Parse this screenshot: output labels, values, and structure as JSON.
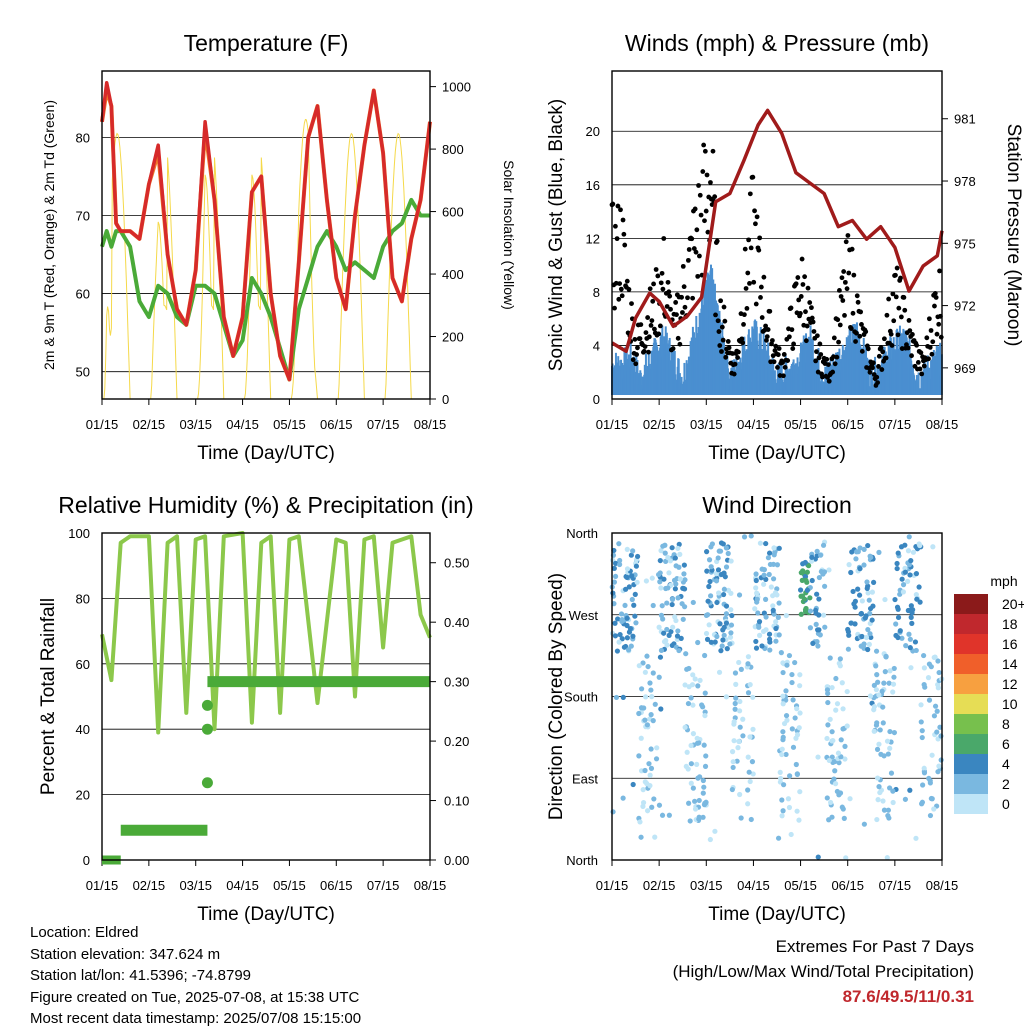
{
  "x_ticks": [
    "01/15",
    "02/15",
    "03/15",
    "04/15",
    "05/15",
    "06/15",
    "07/15",
    "08/15"
  ],
  "x_label": "Time (Day/UTC)",
  "charts": [
    {
      "id": "temperature",
      "title": "Temperature (F)",
      "ylabel_left": "2m & 9m T (Red, Orange) & 2m Td (Green)",
      "ylabel_right": "Solar Insolation (Yellow)",
      "yticks_left": [
        "50",
        "60",
        "70",
        "80"
      ],
      "yticks_right": [
        "0",
        "200",
        "400",
        "600",
        "800",
        "1000"
      ]
    },
    {
      "id": "winds",
      "title": "Winds (mph) & Pressure (mb)",
      "ylabel_left": "Sonic Wind & Gust (Blue, Black)",
      "ylabel_right": "Station Pressure (Maroon)",
      "yticks_left": [
        "0",
        "4",
        "8",
        "12",
        "16",
        "20"
      ],
      "yticks_right": [
        "969",
        "972",
        "975",
        "978",
        "981"
      ]
    },
    {
      "id": "humidity",
      "title": "Relative Humidity (%) & Precipitation (in)",
      "ylabel_left": "Percent & Total Rainfall",
      "yticks_left": [
        "0",
        "20",
        "40",
        "60",
        "80",
        "100"
      ],
      "yticks_right": [
        "0.00",
        "0.10",
        "0.20",
        "0.30",
        "0.40",
        "0.50"
      ]
    },
    {
      "id": "direction",
      "title": "Wind Direction",
      "ylabel_left": "Direction (Colored By Speed)",
      "yticks_left": [
        "North",
        "East",
        "South",
        "West",
        "North"
      ],
      "legend_title": "mph",
      "legend_labels": [
        "20+",
        "18",
        "16",
        "14",
        "12",
        "10",
        "8",
        "6",
        "4",
        "2",
        "0"
      ],
      "legend_colors": [
        "#8b1a1a",
        "#c0282d",
        "#e0342a",
        "#f05f2a",
        "#f7a040",
        "#e6dd55",
        "#77c04d",
        "#4aa86a",
        "#3a86c0",
        "#7ab8e0",
        "#bfe5f7"
      ]
    }
  ],
  "chart_data": [
    {
      "type": "line",
      "title": "Temperature (F)",
      "x": [
        0,
        0.1,
        0.2,
        0.3,
        0.4,
        0.5,
        0.6,
        0.8,
        1.0,
        1.2,
        1.4,
        1.6,
        1.8,
        2.0,
        2.2,
        2.4,
        2.6,
        2.8,
        3.0,
        3.2,
        3.4,
        3.6,
        3.8,
        4.0,
        4.2,
        4.4,
        4.6,
        4.8,
        5.0,
        5.2,
        5.4,
        5.6,
        5.8,
        6.0,
        6.2,
        6.4,
        6.6,
        6.8,
        7.0
      ],
      "series": [
        {
          "values": [
            82,
            87,
            84,
            69,
            68,
            68,
            68,
            67,
            74,
            79,
            65,
            58,
            56,
            63,
            82,
            72,
            57,
            52,
            57,
            73,
            75,
            60,
            52,
            49,
            64,
            80,
            84,
            72,
            62,
            58,
            70,
            79,
            86,
            78,
            62,
            59,
            67,
            72,
            82
          ]
        },
        {
          "values": [
            82,
            86,
            84,
            69,
            68,
            68,
            68,
            67,
            74,
            78,
            65,
            58,
            56,
            63,
            81,
            72,
            57,
            52,
            57,
            73,
            75,
            60,
            52,
            49,
            64,
            80,
            84,
            72,
            62,
            58,
            70,
            79,
            86,
            78,
            62,
            59,
            67,
            72,
            82
          ]
        },
        {
          "values": [
            66,
            68,
            66,
            68,
            68,
            67,
            66,
            59,
            57,
            61,
            60,
            57,
            56,
            61,
            61,
            60,
            56,
            52,
            54,
            62,
            60,
            57,
            53,
            49,
            58,
            62,
            66,
            68,
            66,
            63,
            64,
            63,
            62,
            66,
            68,
            69,
            72,
            70,
            70
          ]
        },
        {
          "values": [
            0,
            950,
            0,
            0,
            0,
            0,
            0,
            0,
            780,
            750,
            0,
            0,
            0,
            0,
            950,
            0,
            0,
            0,
            0,
            950,
            0,
            0,
            0,
            0,
            800,
            940,
            0,
            0,
            0,
            0,
            0,
            0,
            930,
            0,
            0,
            0,
            0,
            950,
            0
          ]
        }
      ],
      "ylim": [
        46.5,
        88.5
      ],
      "ylim_right": [
        0,
        1050
      ]
    },
    {
      "type": "scatter",
      "title": "Winds (mph) & Pressure (mb)",
      "series": [
        {
          "x": [
            0.2,
            0.4,
            0.6,
            1.0,
            1.1,
            1.5,
            2.0,
            2.1,
            2.5,
            3.0,
            3.2,
            3.5,
            4.0,
            4.2,
            4.5,
            5.0,
            5.2,
            5.5,
            6.0,
            6.2,
            6.5,
            6.9
          ],
          "values": [
            2.5,
            3,
            1.5,
            4,
            4.5,
            1.5,
            8,
            9,
            1.5,
            5,
            4,
            1.5,
            3,
            4.5,
            1.5,
            4,
            5,
            1.5,
            4,
            4.5,
            1.5,
            3
          ]
        },
        {
          "x": [
            0.1,
            0.2,
            0.3,
            0.5,
            1.0,
            1.1,
            1.3,
            2.0,
            2.1,
            2.2,
            2.3,
            2.6,
            3.0,
            3.1,
            3.3,
            3.6,
            4.0,
            4.1,
            4.3,
            4.6,
            5.0,
            5.1,
            5.3,
            5.6,
            6.0,
            6.1,
            6.3,
            6.6,
            6.9
          ],
          "values": [
            14,
            15.5,
            11,
            5,
            10,
            12,
            6,
            20,
            22,
            13,
            8,
            3,
            17,
            13,
            7,
            3,
            11,
            10,
            5,
            2.5,
            12,
            11,
            6,
            2,
            10,
            9,
            6,
            3,
            10
          ]
        },
        {
          "x": [
            0,
            0.3,
            0.5,
            0.8,
            1.0,
            1.3,
            1.6,
            1.9,
            2.2,
            2.5,
            2.8,
            3.1,
            3.3,
            3.6,
            3.9,
            4.2,
            4.5,
            4.8,
            5.1,
            5.4,
            5.7,
            6.0,
            6.3,
            6.6,
            6.9,
            7.0
          ],
          "values": [
            970.2,
            969.8,
            971.4,
            972.6,
            972.2,
            971.0,
            971.5,
            972.4,
            977.0,
            977.4,
            979.0,
            980.7,
            981.4,
            980.3,
            978.4,
            977.9,
            977.4,
            975.8,
            976.1,
            975.2,
            975.8,
            974.8,
            972.7,
            973.9,
            974.4,
            975.6
          ]
        }
      ],
      "ylim": [
        0,
        24.5
      ],
      "ylim_right": [
        967.5,
        983.3
      ]
    },
    {
      "type": "line",
      "title": "Relative Humidity (%) & Precipitation (in)",
      "x": [
        0,
        0.2,
        0.4,
        0.6,
        1.0,
        1.2,
        1.4,
        1.6,
        1.8,
        2.0,
        2.2,
        2.4,
        2.6,
        3.0,
        3.2,
        3.4,
        3.6,
        3.8,
        4.0,
        4.2,
        4.6,
        5.0,
        5.2,
        5.4,
        5.6,
        5.8,
        6.0,
        6.2,
        6.4,
        6.6,
        6.8,
        7.0
      ],
      "series": [
        {
          "values": [
            69,
            55,
            97,
            99,
            99,
            39,
            97,
            99,
            45,
            98,
            99,
            40,
            99,
            100,
            42,
            97,
            99,
            45,
            98,
            99,
            48,
            98,
            97,
            50,
            98,
            99,
            65,
            97,
            98,
            99,
            75,
            68
          ]
        },
        {
          "values": [
            0,
            0,
            0.05,
            0.05,
            0.05,
            0.05,
            0.05,
            0.05,
            0.05,
            0.3,
            0.3,
            0.3,
            0.3,
            0.3,
            0.3,
            0.3,
            0.3,
            0.3,
            0.3,
            0.3,
            0.3,
            0.3,
            0.3,
            0.3,
            0.3,
            0.3,
            0.3,
            0.3,
            0.3,
            0.3,
            0.3,
            0.3
          ]
        }
      ],
      "ylim": [
        0,
        100
      ],
      "ylim_right": [
        0,
        0.55
      ]
    },
    {
      "type": "scatter",
      "title": "Wind Direction",
      "series": [
        {
          "x": [
            0.1,
            0.2,
            0.5,
            0.9,
            1.0,
            1.2,
            1.6,
            1.9,
            2.1,
            2.3,
            2.6,
            3.0,
            3.1,
            3.3,
            3.6,
            3.9,
            4.1,
            4.4,
            4.6,
            4.9,
            5.1,
            5.4,
            5.6,
            5.9,
            6.1,
            6.4,
            6.6,
            6.9
          ],
          "values": [
            280,
            300,
            180,
            270,
            290,
            200,
            120,
            260,
            300,
            110,
            90,
            285,
            270,
            70,
            150,
            270,
            250,
            60,
            200,
            280,
            100,
            80,
            200,
            290,
            260,
            90,
            160,
            270
          ]
        }
      ],
      "ylim": [
        0,
        360
      ]
    }
  ],
  "footer": {
    "location": "Location: Eldred",
    "elevation": "Station elevation: 347.624 m",
    "latlon": "Station lat/lon: 41.5396; -74.8799",
    "created": "Figure created on Tue, 2025-07-08, at 15:38 UTC",
    "recent": "Most recent data timestamp: 2025/07/08 15:15:00",
    "extremes_title": "Extremes For Past 7 Days",
    "extremes_subtitle": "(High/Low/Max Wind/Total Precipitation)",
    "extremes_values": "87.6/49.5/11/0.31"
  },
  "colors": {
    "temp2m": "#d62a2a",
    "temp9m": "#f07a2a",
    "dewpoint": "#4aaa38",
    "solar": "#f5d94a",
    "wind": "#4a8fd0",
    "gust": "#000000",
    "pressure": "#a01b1b",
    "rh": "#8cc84b",
    "precip": "#4aaa38"
  }
}
